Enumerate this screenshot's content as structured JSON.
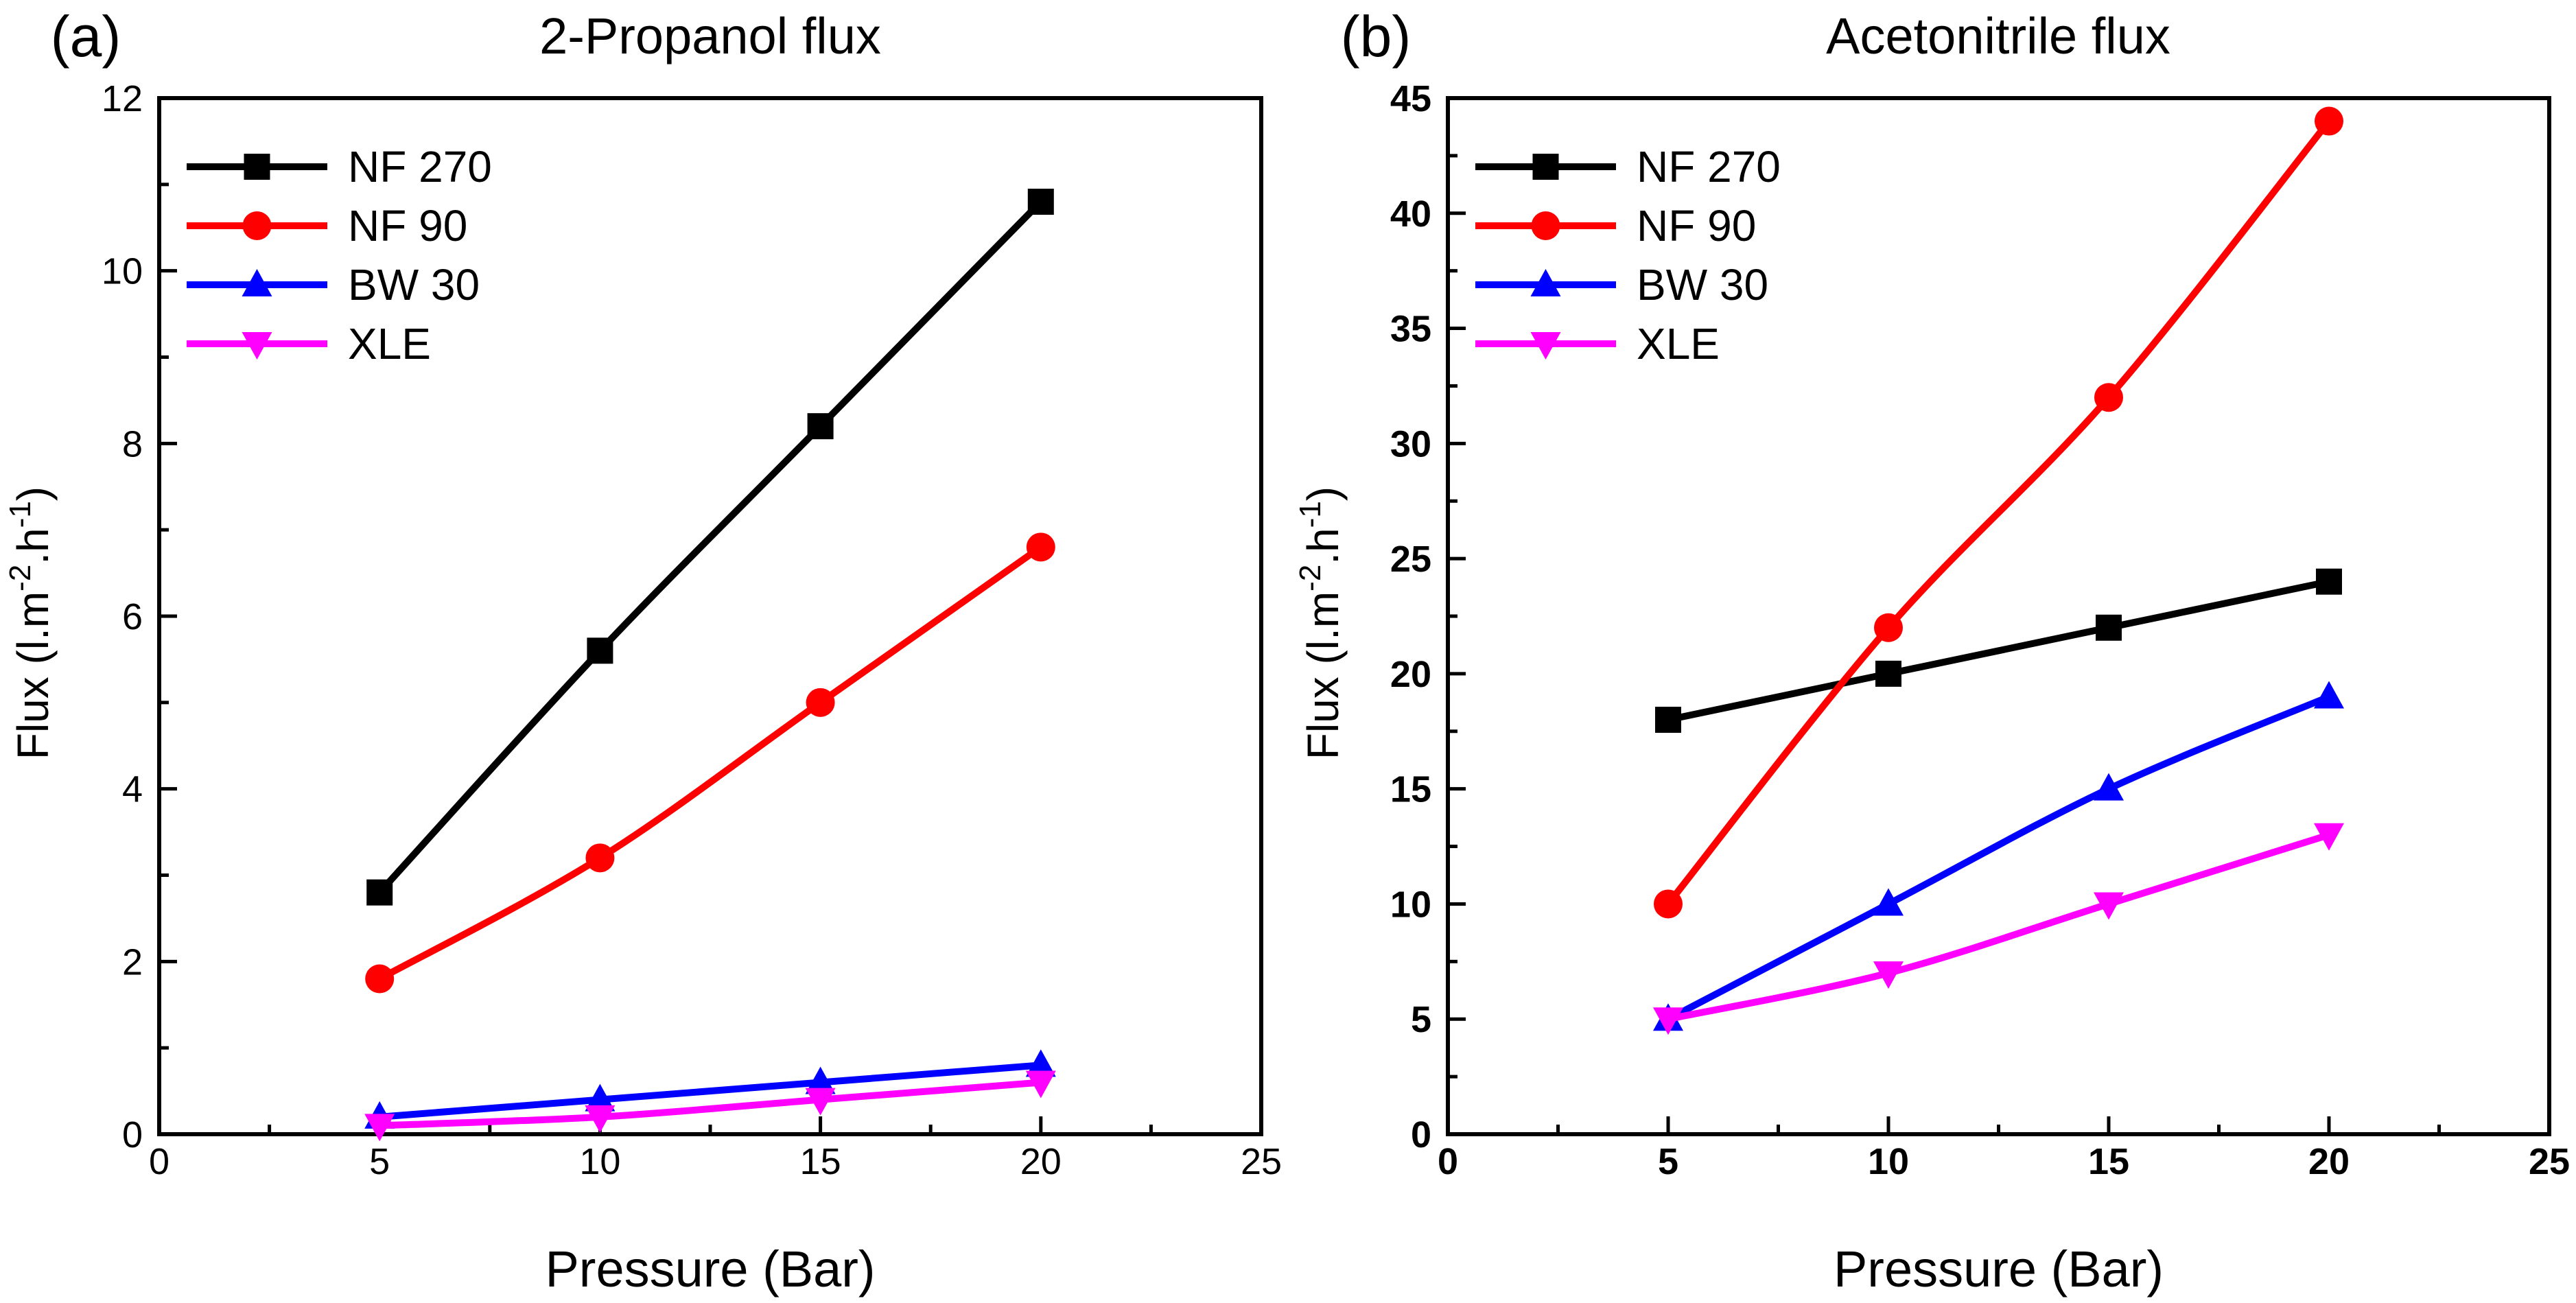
{
  "chart_data": [
    {
      "type": "line",
      "panel_label": "(a)",
      "title": "2-Propanol flux",
      "xlabel": "Pressure (Bar)",
      "ylabel": "Flux (l.m",
      "ylabel_sup1": "-2",
      "ylabel_mid": ".h",
      "ylabel_sup2": "-1",
      "ylabel_end": ")",
      "xlim": [
        0,
        25
      ],
      "ylim": [
        0,
        12
      ],
      "xticks": [
        "0",
        "5",
        "10",
        "15",
        "20",
        "25"
      ],
      "yticks": [
        "0",
        "2",
        "4",
        "6",
        "8",
        "10",
        "12"
      ],
      "legend_position": "top-left",
      "x": [
        5,
        10,
        15,
        20
      ],
      "series": [
        {
          "name": "NF 270",
          "color": "#000000",
          "marker": "square",
          "values": [
            2.8,
            5.6,
            8.2,
            10.8
          ]
        },
        {
          "name": "NF 90",
          "color": "#ff0000",
          "marker": "circle",
          "values": [
            1.8,
            3.2,
            5.0,
            6.8
          ]
        },
        {
          "name": "BW 30",
          "color": "#0000ff",
          "marker": "triangle-up",
          "values": [
            0.2,
            0.4,
            0.6,
            0.8
          ]
        },
        {
          "name": "XLE",
          "color": "#ff00ff",
          "marker": "triangle-down",
          "values": [
            0.1,
            0.2,
            0.4,
            0.6
          ]
        }
      ]
    },
    {
      "type": "line",
      "panel_label": "(b)",
      "title": "Acetonitrile flux",
      "xlabel": "Pressure (Bar)",
      "ylabel": "Flux (l.m",
      "ylabel_sup1": "-2",
      "ylabel_mid": ".h",
      "ylabel_sup2": "-1",
      "ylabel_end": ")",
      "xlim": [
        0,
        25
      ],
      "ylim": [
        0,
        45
      ],
      "xticks": [
        "0",
        "5",
        "10",
        "15",
        "20",
        "25"
      ],
      "yticks": [
        "0",
        "5",
        "10",
        "15",
        "20",
        "25",
        "30",
        "35",
        "40",
        "45"
      ],
      "legend_position": "top-left",
      "x": [
        5,
        10,
        15,
        20
      ],
      "series": [
        {
          "name": "NF 270",
          "color": "#000000",
          "marker": "square",
          "values": [
            18,
            20,
            22,
            24
          ]
        },
        {
          "name": "NF 90",
          "color": "#ff0000",
          "marker": "circle",
          "values": [
            10,
            22,
            32,
            44
          ]
        },
        {
          "name": "BW 30",
          "color": "#0000ff",
          "marker": "triangle-up",
          "values": [
            5,
            10,
            15,
            19
          ]
        },
        {
          "name": "XLE",
          "color": "#ff00ff",
          "marker": "triangle-down",
          "values": [
            5,
            7,
            10,
            13
          ]
        }
      ]
    }
  ]
}
